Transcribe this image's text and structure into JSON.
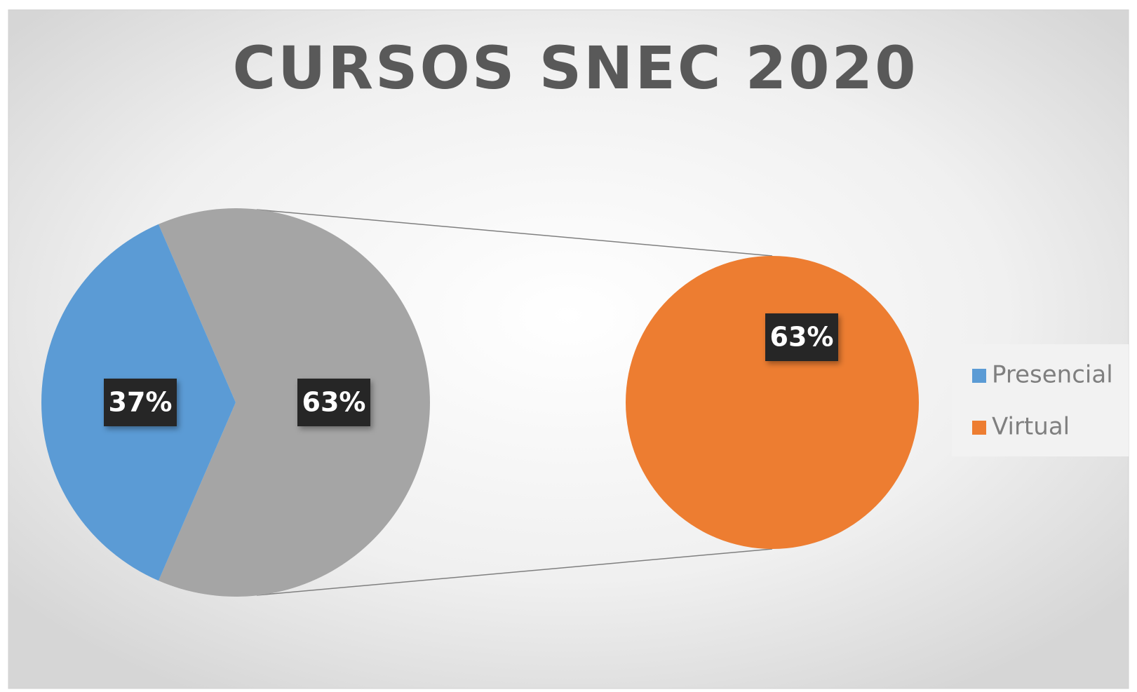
{
  "chart_data": {
    "type": "pie_of_pie",
    "title": "CURSOS SNEC 2020",
    "categories": [
      "Presencial",
      "Virtual"
    ],
    "values": [
      37,
      63
    ],
    "value_labels": [
      "37%",
      "63%"
    ],
    "colors": [
      "#5b9bd5",
      "#ed7d31"
    ],
    "other_color": "#a5a5a5",
    "legend": "right"
  }
}
